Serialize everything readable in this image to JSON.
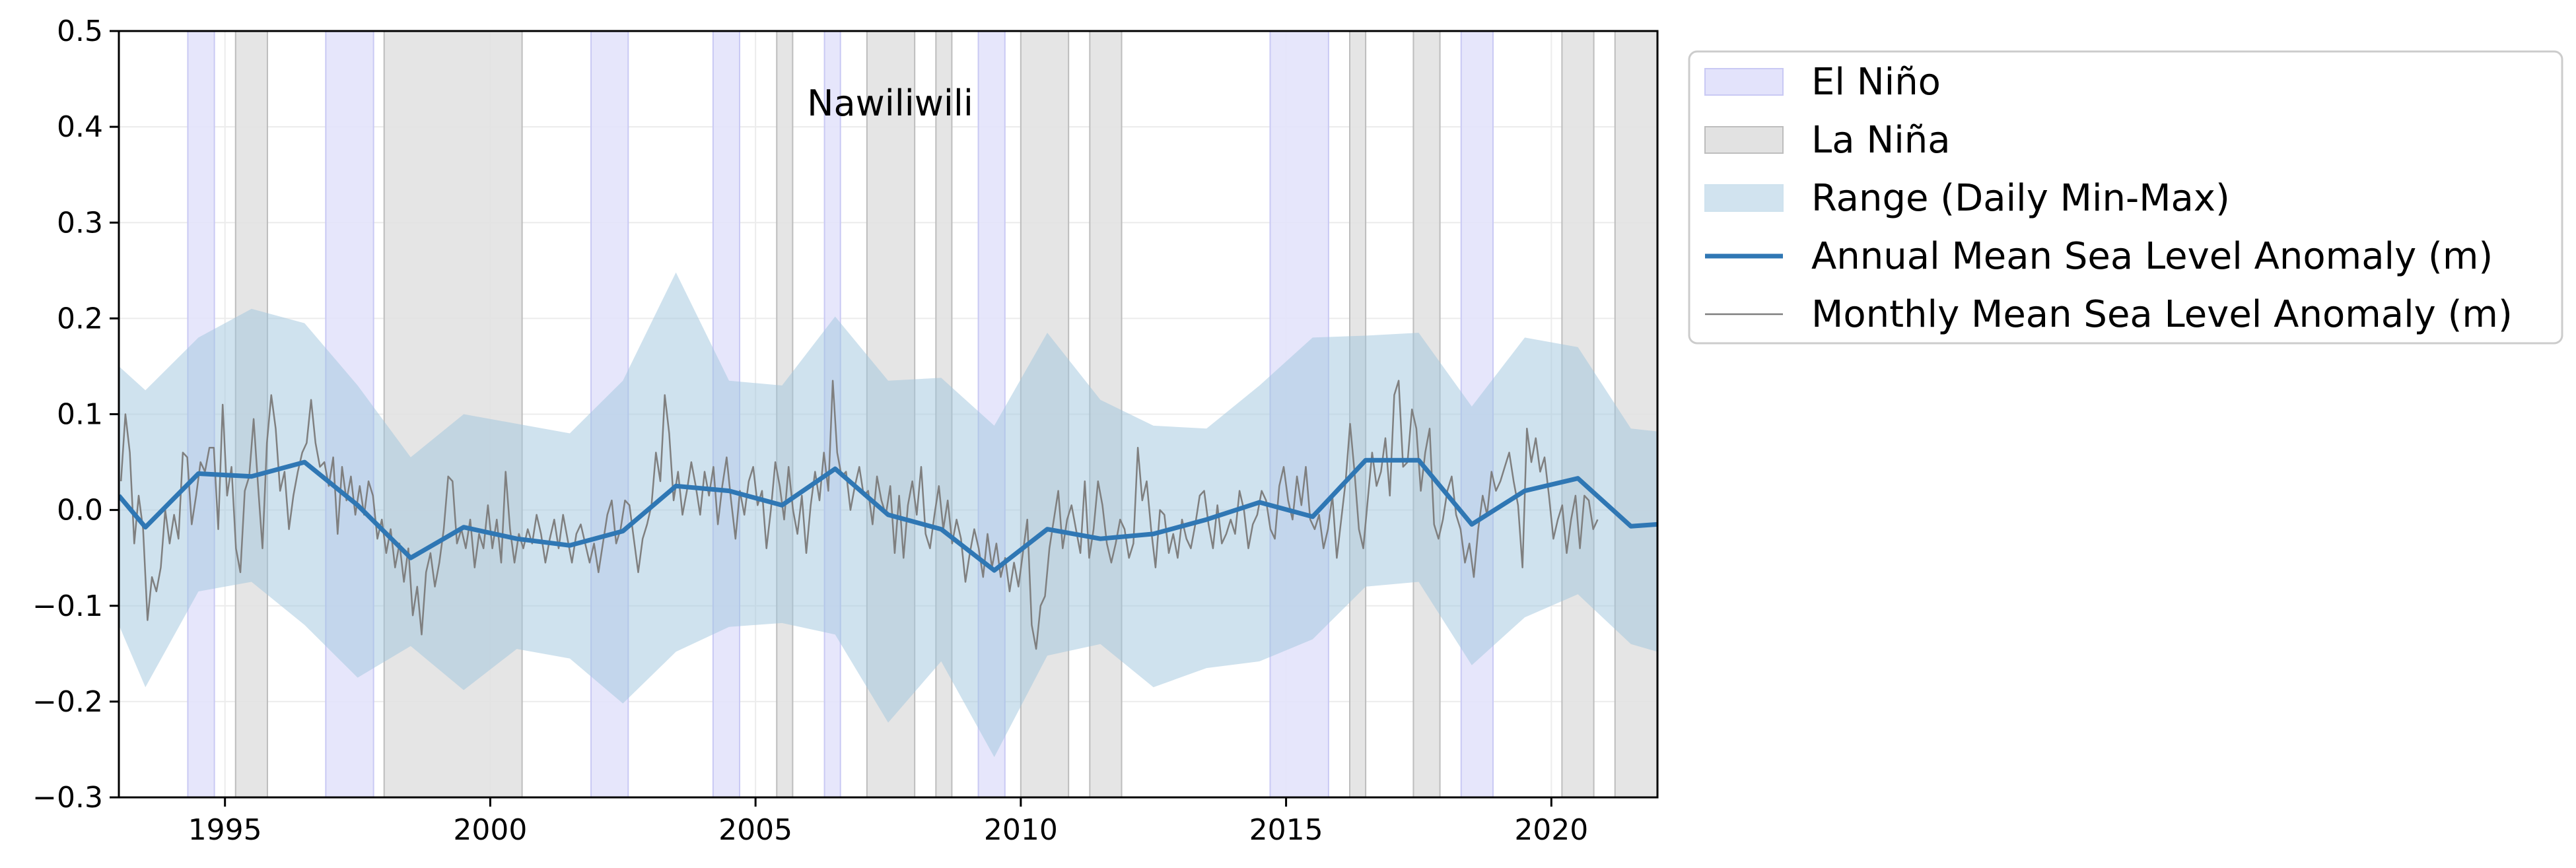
{
  "chart_data": {
    "type": "line",
    "title": "Nawiliwili",
    "xlabel": "",
    "ylabel": "",
    "xlim": [
      1993.0,
      2022.0
    ],
    "ylim": [
      -0.3,
      0.5
    ],
    "x_ticks": [
      1995,
      2000,
      2005,
      2010,
      2015,
      2020
    ],
    "y_ticks": [
      -0.3,
      -0.2,
      -0.1,
      0.0,
      0.1,
      0.2,
      0.3,
      0.4,
      0.5
    ],
    "y_tick_labels": [
      "−0.3",
      "−0.2",
      "−0.1",
      "0.0",
      "0.1",
      "0.2",
      "0.3",
      "0.4",
      "0.5"
    ],
    "grid": true,
    "legend_position": "outside right, top",
    "legend": [
      {
        "label": "El Niño",
        "kind": "patch",
        "color": "#e3e3fb",
        "edge": "#c9c9f4"
      },
      {
        "label": "La Niña",
        "kind": "patch",
        "color": "#e2e2e2",
        "edge": "#bdbdbd"
      },
      {
        "label": "Range (Daily Min-Max)",
        "kind": "patch",
        "color": "#cfe2ee",
        "edge": "#cfe2ee"
      },
      {
        "label": "Annual Mean Sea Level Anomaly (m)",
        "kind": "line",
        "color": "#2f77b4",
        "width": 7
      },
      {
        "label": "Monthly Mean Sea Level Anomaly (m)",
        "kind": "line",
        "color": "#7f7f7f",
        "width": 2.5
      }
    ],
    "el_nino_periods": [
      [
        1994.3,
        1994.8
      ],
      [
        1996.9,
        1997.8
      ],
      [
        2001.9,
        2002.6
      ],
      [
        2004.2,
        2004.7
      ],
      [
        2006.3,
        2006.6
      ],
      [
        2009.2,
        2009.7
      ],
      [
        2014.7,
        2015.8
      ],
      [
        2018.3,
        2018.9
      ]
    ],
    "la_nina_periods": [
      [
        1995.2,
        1995.8
      ],
      [
        1998.0,
        2000.6
      ],
      [
        2005.4,
        2005.7
      ],
      [
        2007.1,
        2008.0
      ],
      [
        2008.4,
        2008.7
      ],
      [
        2010.0,
        2010.9
      ],
      [
        2011.3,
        2011.9
      ],
      [
        2016.2,
        2016.5
      ],
      [
        2017.4,
        2017.9
      ],
      [
        2020.2,
        2020.8
      ],
      [
        2021.2,
        2022.0
      ]
    ],
    "range_daily_min_max": {
      "x": [
        1993.0,
        1993.5,
        1994.5,
        1995.5,
        1996.5,
        1997.5,
        1998.5,
        1999.5,
        2000.5,
        2001.5,
        2002.5,
        2003.5,
        2004.5,
        2005.5,
        2006.5,
        2007.5,
        2008.5,
        2009.5,
        2010.5,
        2011.5,
        2012.5,
        2013.5,
        2014.5,
        2015.5,
        2016.5,
        2017.5,
        2018.5,
        2019.5,
        2020.5,
        2021.5,
        2022.0
      ],
      "max": [
        0.15,
        0.125,
        0.18,
        0.21,
        0.195,
        0.13,
        0.055,
        0.1,
        0.09,
        0.08,
        0.135,
        0.248,
        0.135,
        0.13,
        0.202,
        0.135,
        0.138,
        0.088,
        0.185,
        0.115,
        0.088,
        0.085,
        0.13,
        0.18,
        0.182,
        0.185,
        0.108,
        0.18,
        0.17,
        0.085,
        0.082
      ],
      "min": [
        -0.12,
        -0.185,
        -0.085,
        -0.075,
        -0.12,
        -0.175,
        -0.142,
        -0.188,
        -0.145,
        -0.155,
        -0.202,
        -0.148,
        -0.122,
        -0.118,
        -0.13,
        -0.222,
        -0.158,
        -0.258,
        -0.152,
        -0.14,
        -0.185,
        -0.165,
        -0.158,
        -0.135,
        -0.08,
        -0.075,
        -0.162,
        -0.112,
        -0.088,
        -0.14,
        -0.148
      ]
    },
    "series": [
      {
        "name": "Annual Mean Sea Level Anomaly (m)",
        "x": [
          1993.0,
          1993.5,
          1994.5,
          1995.5,
          1996.5,
          1997.5,
          1998.5,
          1999.5,
          2000.5,
          2001.5,
          2002.5,
          2003.5,
          2004.5,
          2005.5,
          2006.5,
          2007.5,
          2008.5,
          2009.5,
          2010.5,
          2011.5,
          2012.5,
          2013.5,
          2014.5,
          2015.5,
          2016.5,
          2017.5,
          2018.5,
          2019.5,
          2020.5,
          2021.5,
          2022.0
        ],
        "y": [
          0.015,
          -0.018,
          0.038,
          0.035,
          0.05,
          0.005,
          -0.05,
          -0.018,
          -0.03,
          -0.037,
          -0.022,
          0.025,
          0.02,
          0.005,
          0.043,
          -0.005,
          -0.02,
          -0.063,
          -0.02,
          -0.03,
          -0.025,
          -0.01,
          0.008,
          -0.007,
          0.052,
          0.052,
          -0.015,
          0.02,
          0.033,
          -0.017,
          -0.015
        ]
      },
      {
        "name": "Monthly Mean Sea Level Anomaly (m)",
        "x_start": 1993.04,
        "x_step": 0.08333,
        "y": [
          0.03,
          0.1,
          0.06,
          -0.035,
          0.015,
          -0.02,
          -0.115,
          -0.07,
          -0.085,
          -0.06,
          0.0,
          -0.035,
          -0.005,
          -0.03,
          0.06,
          0.055,
          -0.015,
          0.015,
          0.05,
          0.04,
          0.065,
          0.065,
          -0.02,
          0.11,
          0.015,
          0.045,
          -0.04,
          -0.065,
          0.02,
          0.035,
          0.095,
          0.025,
          -0.04,
          0.07,
          0.12,
          0.085,
          0.02,
          0.04,
          -0.02,
          0.015,
          0.04,
          0.06,
          0.07,
          0.115,
          0.07,
          0.045,
          0.05,
          0.025,
          0.055,
          -0.025,
          0.045,
          0.01,
          0.035,
          -0.005,
          0.025,
          -0.005,
          0.03,
          0.015,
          -0.03,
          -0.01,
          -0.045,
          -0.02,
          -0.06,
          -0.035,
          -0.075,
          -0.04,
          -0.11,
          -0.08,
          -0.13,
          -0.065,
          -0.045,
          -0.08,
          -0.055,
          -0.02,
          0.035,
          0.03,
          -0.035,
          -0.02,
          -0.04,
          -0.01,
          -0.06,
          -0.025,
          -0.04,
          0.005,
          -0.04,
          -0.01,
          -0.055,
          0.04,
          -0.02,
          -0.055,
          -0.025,
          -0.04,
          -0.02,
          -0.035,
          -0.005,
          -0.025,
          -0.055,
          -0.03,
          -0.01,
          -0.04,
          -0.005,
          -0.03,
          -0.055,
          -0.025,
          -0.015,
          -0.035,
          -0.055,
          -0.035,
          -0.065,
          -0.035,
          -0.005,
          0.01,
          -0.035,
          -0.02,
          0.01,
          0.005,
          -0.03,
          -0.065,
          -0.03,
          -0.015,
          0.005,
          0.06,
          0.03,
          0.12,
          0.08,
          0.01,
          0.04,
          -0.005,
          0.02,
          0.05,
          0.025,
          -0.005,
          0.04,
          0.015,
          0.045,
          -0.015,
          0.025,
          0.055,
          0.01,
          -0.03,
          0.02,
          -0.005,
          0.03,
          0.045,
          0.005,
          0.02,
          -0.04,
          0.0,
          0.05,
          0.025,
          -0.01,
          0.045,
          0.0,
          -0.025,
          0.015,
          -0.045,
          0.005,
          0.04,
          0.01,
          0.06,
          0.02,
          0.135,
          0.06,
          0.035,
          0.04,
          0.0,
          0.025,
          0.045,
          0.015,
          0.02,
          -0.015,
          0.035,
          0.01,
          -0.005,
          0.025,
          -0.045,
          0.015,
          -0.05,
          0.005,
          0.03,
          -0.005,
          0.045,
          -0.025,
          -0.04,
          -0.005,
          0.025,
          -0.02,
          0.01,
          -0.035,
          -0.01,
          -0.03,
          -0.075,
          -0.045,
          -0.02,
          -0.04,
          -0.07,
          -0.025,
          -0.06,
          -0.035,
          -0.07,
          -0.05,
          -0.085,
          -0.055,
          -0.08,
          -0.045,
          -0.01,
          -0.12,
          -0.145,
          -0.1,
          -0.09,
          -0.04,
          -0.01,
          0.02,
          -0.04,
          -0.01,
          0.005,
          -0.02,
          -0.045,
          0.03,
          -0.05,
          -0.02,
          0.03,
          0.005,
          -0.035,
          -0.055,
          -0.035,
          -0.01,
          -0.02,
          -0.05,
          -0.035,
          0.065,
          0.01,
          0.03,
          -0.02,
          -0.06,
          0.0,
          -0.005,
          -0.045,
          -0.025,
          -0.05,
          -0.01,
          -0.03,
          -0.04,
          -0.015,
          0.015,
          0.02,
          -0.015,
          -0.04,
          0.005,
          -0.035,
          -0.025,
          -0.01,
          -0.025,
          0.02,
          0.0,
          -0.04,
          -0.015,
          -0.005,
          0.02,
          0.01,
          -0.02,
          -0.03,
          0.025,
          0.045,
          0.01,
          -0.01,
          0.035,
          0.005,
          0.045,
          -0.01,
          -0.02,
          -0.005,
          -0.04,
          -0.02,
          0.015,
          -0.05,
          -0.01,
          0.03,
          0.09,
          0.04,
          -0.02,
          -0.04,
          0.01,
          0.06,
          0.025,
          0.04,
          0.075,
          0.015,
          0.12,
          0.135,
          0.045,
          0.05,
          0.105,
          0.085,
          0.02,
          0.06,
          0.085,
          -0.015,
          -0.03,
          -0.01,
          0.02,
          0.035,
          -0.005,
          -0.02,
          -0.055,
          -0.035,
          -0.07,
          -0.02,
          0.015,
          -0.005,
          0.04,
          0.02,
          0.03,
          0.045,
          0.06,
          0.03,
          0.005,
          -0.06,
          0.085,
          0.05,
          0.075,
          0.04,
          0.055,
          0.015,
          -0.03,
          -0.01,
          0.005,
          -0.045,
          -0.01,
          0.015,
          -0.04,
          0.015,
          0.01,
          -0.02,
          -0.01
        ]
      }
    ]
  }
}
